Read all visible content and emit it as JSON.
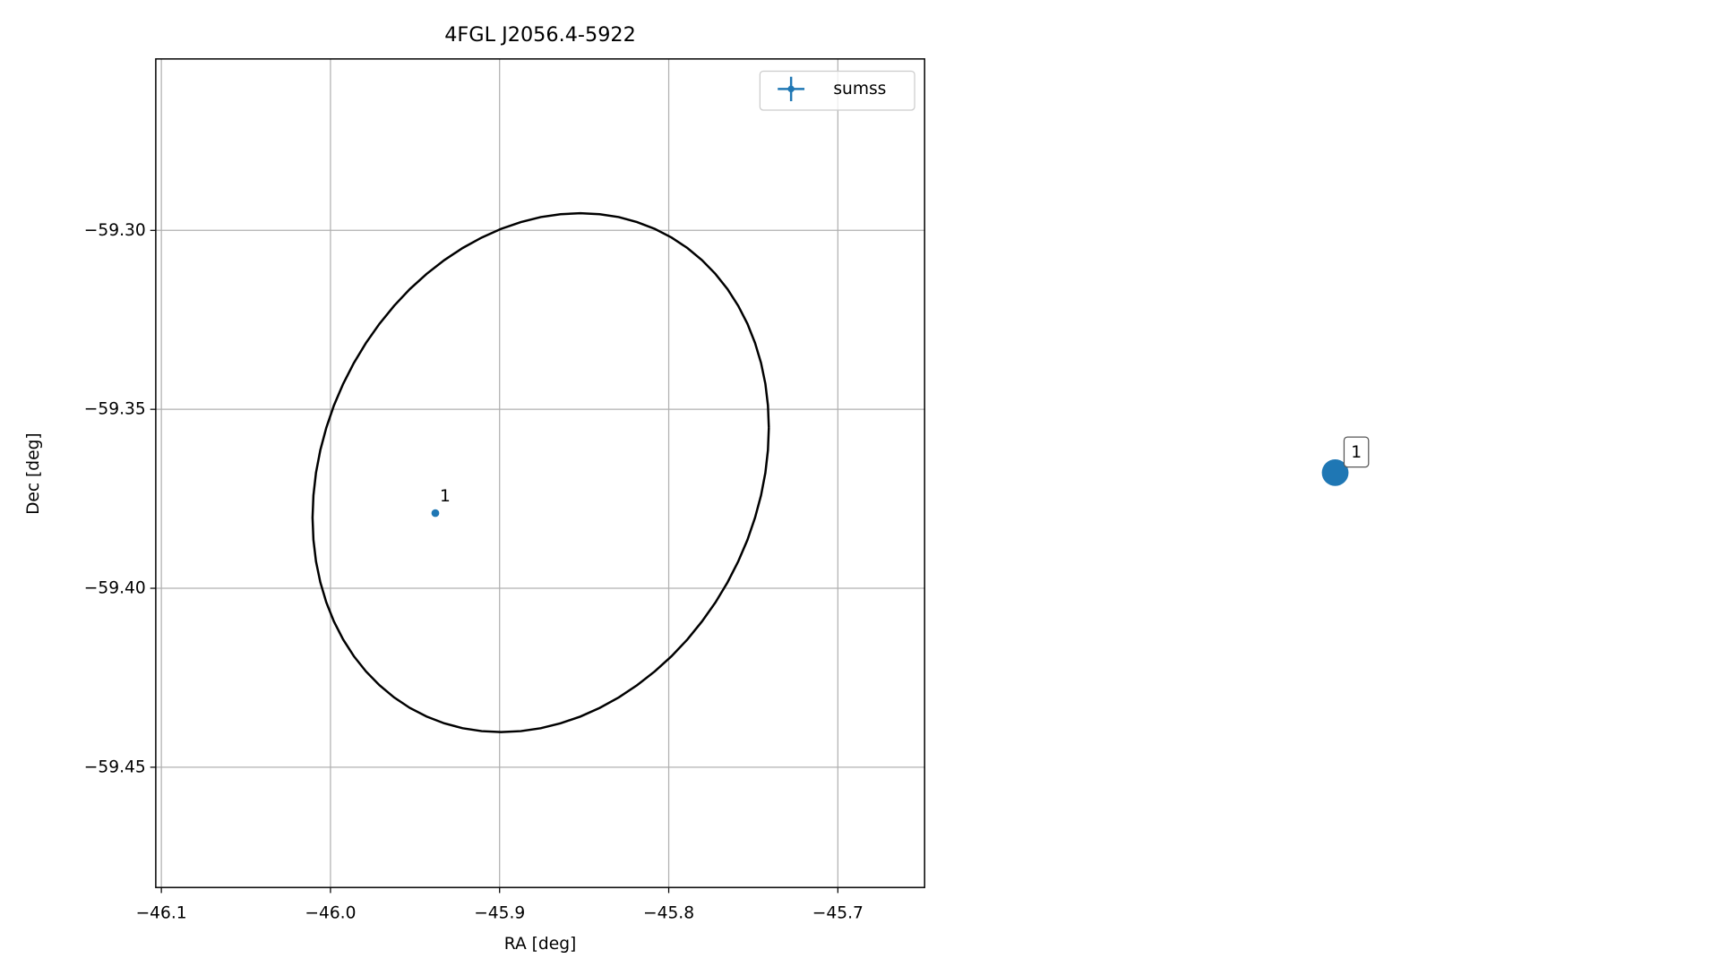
{
  "chart_data": [
    {
      "type": "scatter",
      "title": "4FGL J2056.4-5922",
      "x_label": "RA [deg]",
      "y_label": "Dec [deg]",
      "xlim": [
        -46.1033,
        -45.6487
      ],
      "ylim": [
        -59.4836,
        -59.2521
      ],
      "xticks": [
        {
          "value": -46.1,
          "label": "−46.1"
        },
        {
          "value": -46.0,
          "label": "−46.0"
        },
        {
          "value": -45.9,
          "label": "−45.9"
        },
        {
          "value": -45.8,
          "label": "−45.8"
        },
        {
          "value": -45.7,
          "label": "−45.7"
        }
      ],
      "yticks": [
        {
          "value": -59.3,
          "label": "−59.30"
        },
        {
          "value": -59.35,
          "label": "−59.35"
        },
        {
          "value": -59.4,
          "label": "−59.40"
        },
        {
          "value": -59.45,
          "label": "−59.45"
        }
      ],
      "grid": true,
      "legend": "upper right",
      "series": [
        {
          "name": "sumss",
          "color": "#1f77b4",
          "x": [
            -45.938
          ],
          "y": [
            -59.379
          ],
          "labels": [
            "1"
          ]
        }
      ],
      "ellipse": {
        "x": -45.8757,
        "y": -59.3677,
        "x_radius": 0.1349,
        "y_radius": 0.0725,
        "phase_deg": 80,
        "color": "#000000"
      }
    },
    {
      "type": "markers",
      "color": "#1f77b4",
      "labels": [
        "1"
      ]
    }
  ]
}
